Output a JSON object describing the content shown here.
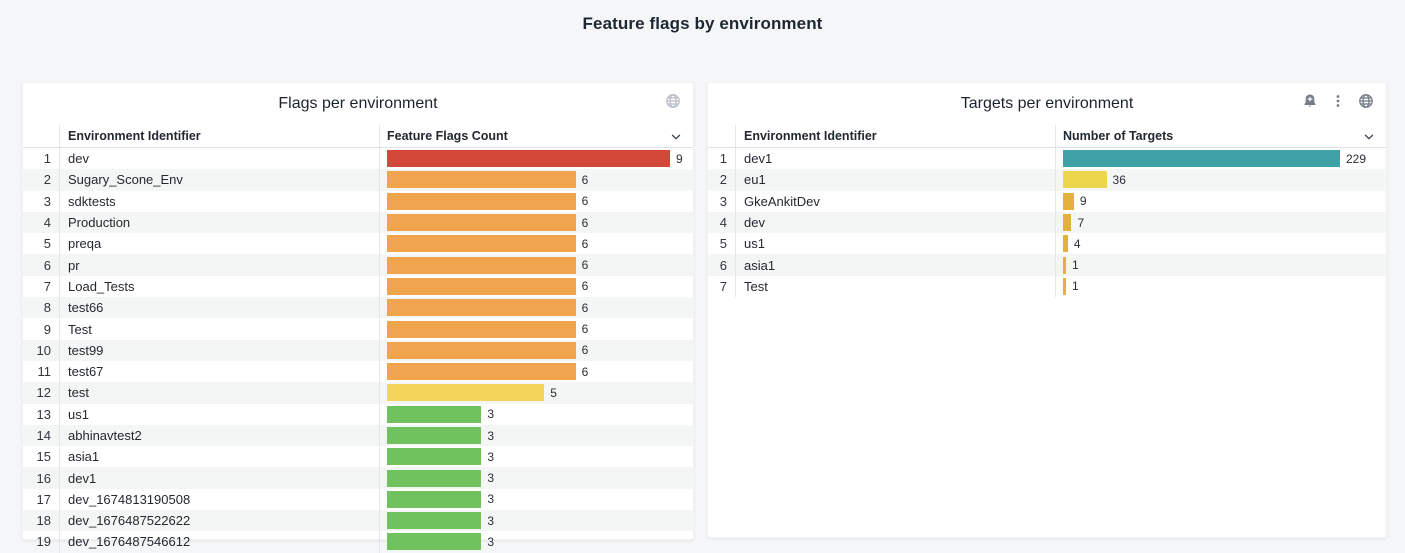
{
  "page": {
    "title": "Feature flags by environment",
    "background_color": "#f4f6f8"
  },
  "panels": [
    {
      "title": "Flags per environment",
      "header_icons": [
        "globe-icon"
      ],
      "columns": {
        "id": "Environment Identifier",
        "value": "Feature Flags Count"
      },
      "max": 9,
      "bar_colors": {
        "red": "#d4483a",
        "orange": "#f0a44d",
        "yellow": "#f3d55b",
        "green": "#70c25e"
      },
      "rows": [
        {
          "n": 1,
          "name": "dev",
          "value": 9,
          "color": "#d4483a"
        },
        {
          "n": 2,
          "name": "Sugary_Scone_Env",
          "value": 6,
          "color": "#f0a44d"
        },
        {
          "n": 3,
          "name": "sdktests",
          "value": 6,
          "color": "#f0a44d"
        },
        {
          "n": 4,
          "name": "Production",
          "value": 6,
          "color": "#f0a44d"
        },
        {
          "n": 5,
          "name": "preqa",
          "value": 6,
          "color": "#f0a44d"
        },
        {
          "n": 6,
          "name": "pr",
          "value": 6,
          "color": "#f0a44d"
        },
        {
          "n": 7,
          "name": "Load_Tests",
          "value": 6,
          "color": "#f0a44d"
        },
        {
          "n": 8,
          "name": "test66",
          "value": 6,
          "color": "#f0a44d"
        },
        {
          "n": 9,
          "name": "Test",
          "value": 6,
          "color": "#f0a44d"
        },
        {
          "n": 10,
          "name": "test99",
          "value": 6,
          "color": "#f0a44d"
        },
        {
          "n": 11,
          "name": "test67",
          "value": 6,
          "color": "#f0a44d"
        },
        {
          "n": 12,
          "name": "test",
          "value": 5,
          "color": "#f3d55b"
        },
        {
          "n": 13,
          "name": "us1",
          "value": 3,
          "color": "#70c25e"
        },
        {
          "n": 14,
          "name": "abhinavtest2",
          "value": 3,
          "color": "#70c25e"
        },
        {
          "n": 15,
          "name": "asia1",
          "value": 3,
          "color": "#70c25e"
        },
        {
          "n": 16,
          "name": "dev1",
          "value": 3,
          "color": "#70c25e"
        },
        {
          "n": 17,
          "name": "dev_1674813190508",
          "value": 3,
          "color": "#70c25e"
        },
        {
          "n": 18,
          "name": "dev_1676487522622",
          "value": 3,
          "color": "#70c25e"
        },
        {
          "n": 19,
          "name": "dev_1676487546612",
          "value": 3,
          "color": "#70c25e"
        }
      ]
    },
    {
      "title": "Targets per environment",
      "header_icons": [
        "bell-plus-icon",
        "kebab-menu-icon",
        "globe-icon"
      ],
      "columns": {
        "id": "Environment Identifier",
        "value": "Number of Targets"
      },
      "max": 229,
      "bar_colors": {
        "teal": "#3fa0a5",
        "yellow": "#ecd64b",
        "amber": "#e2b23c"
      },
      "rows": [
        {
          "n": 1,
          "name": "dev1",
          "value": 229,
          "color": "#3fa0a5"
        },
        {
          "n": 2,
          "name": "eu1",
          "value": 36,
          "color": "#ecd64b"
        },
        {
          "n": 3,
          "name": "GkeAnkitDev",
          "value": 9,
          "color": "#e2b23c"
        },
        {
          "n": 4,
          "name": "dev",
          "value": 7,
          "color": "#e2b23c"
        },
        {
          "n": 5,
          "name": "us1",
          "value": 4,
          "color": "#e2b23c"
        },
        {
          "n": 6,
          "name": "asia1",
          "value": 1,
          "color": "#e2b23c"
        },
        {
          "n": 7,
          "name": "Test",
          "value": 1,
          "color": "#e2b23c"
        }
      ]
    }
  ],
  "chart_data": [
    {
      "type": "bar",
      "orientation": "horizontal",
      "title": "Flags per environment",
      "categories": [
        "dev",
        "Sugary_Scone_Env",
        "sdktests",
        "Production",
        "preqa",
        "pr",
        "Load_Tests",
        "test66",
        "Test",
        "test99",
        "test67",
        "test",
        "us1",
        "abhinavtest2",
        "asia1",
        "dev1",
        "dev_1674813190508",
        "dev_1676487522622",
        "dev_1676487546612"
      ],
      "values": [
        9,
        6,
        6,
        6,
        6,
        6,
        6,
        6,
        6,
        6,
        6,
        5,
        3,
        3,
        3,
        3,
        3,
        3,
        3
      ],
      "xlabel": "Feature Flags Count",
      "ylabel": "Environment Identifier",
      "xlim": [
        0,
        9
      ],
      "value_labels": true,
      "grid": false,
      "legend": false
    },
    {
      "type": "bar",
      "orientation": "horizontal",
      "title": "Targets per environment",
      "categories": [
        "dev1",
        "eu1",
        "GkeAnkitDev",
        "dev",
        "us1",
        "asia1",
        "Test"
      ],
      "values": [
        229,
        36,
        9,
        7,
        4,
        1,
        1
      ],
      "xlabel": "Number of Targets",
      "ylabel": "Environment Identifier",
      "xlim": [
        0,
        229
      ],
      "value_labels": true,
      "grid": false,
      "legend": false
    }
  ]
}
